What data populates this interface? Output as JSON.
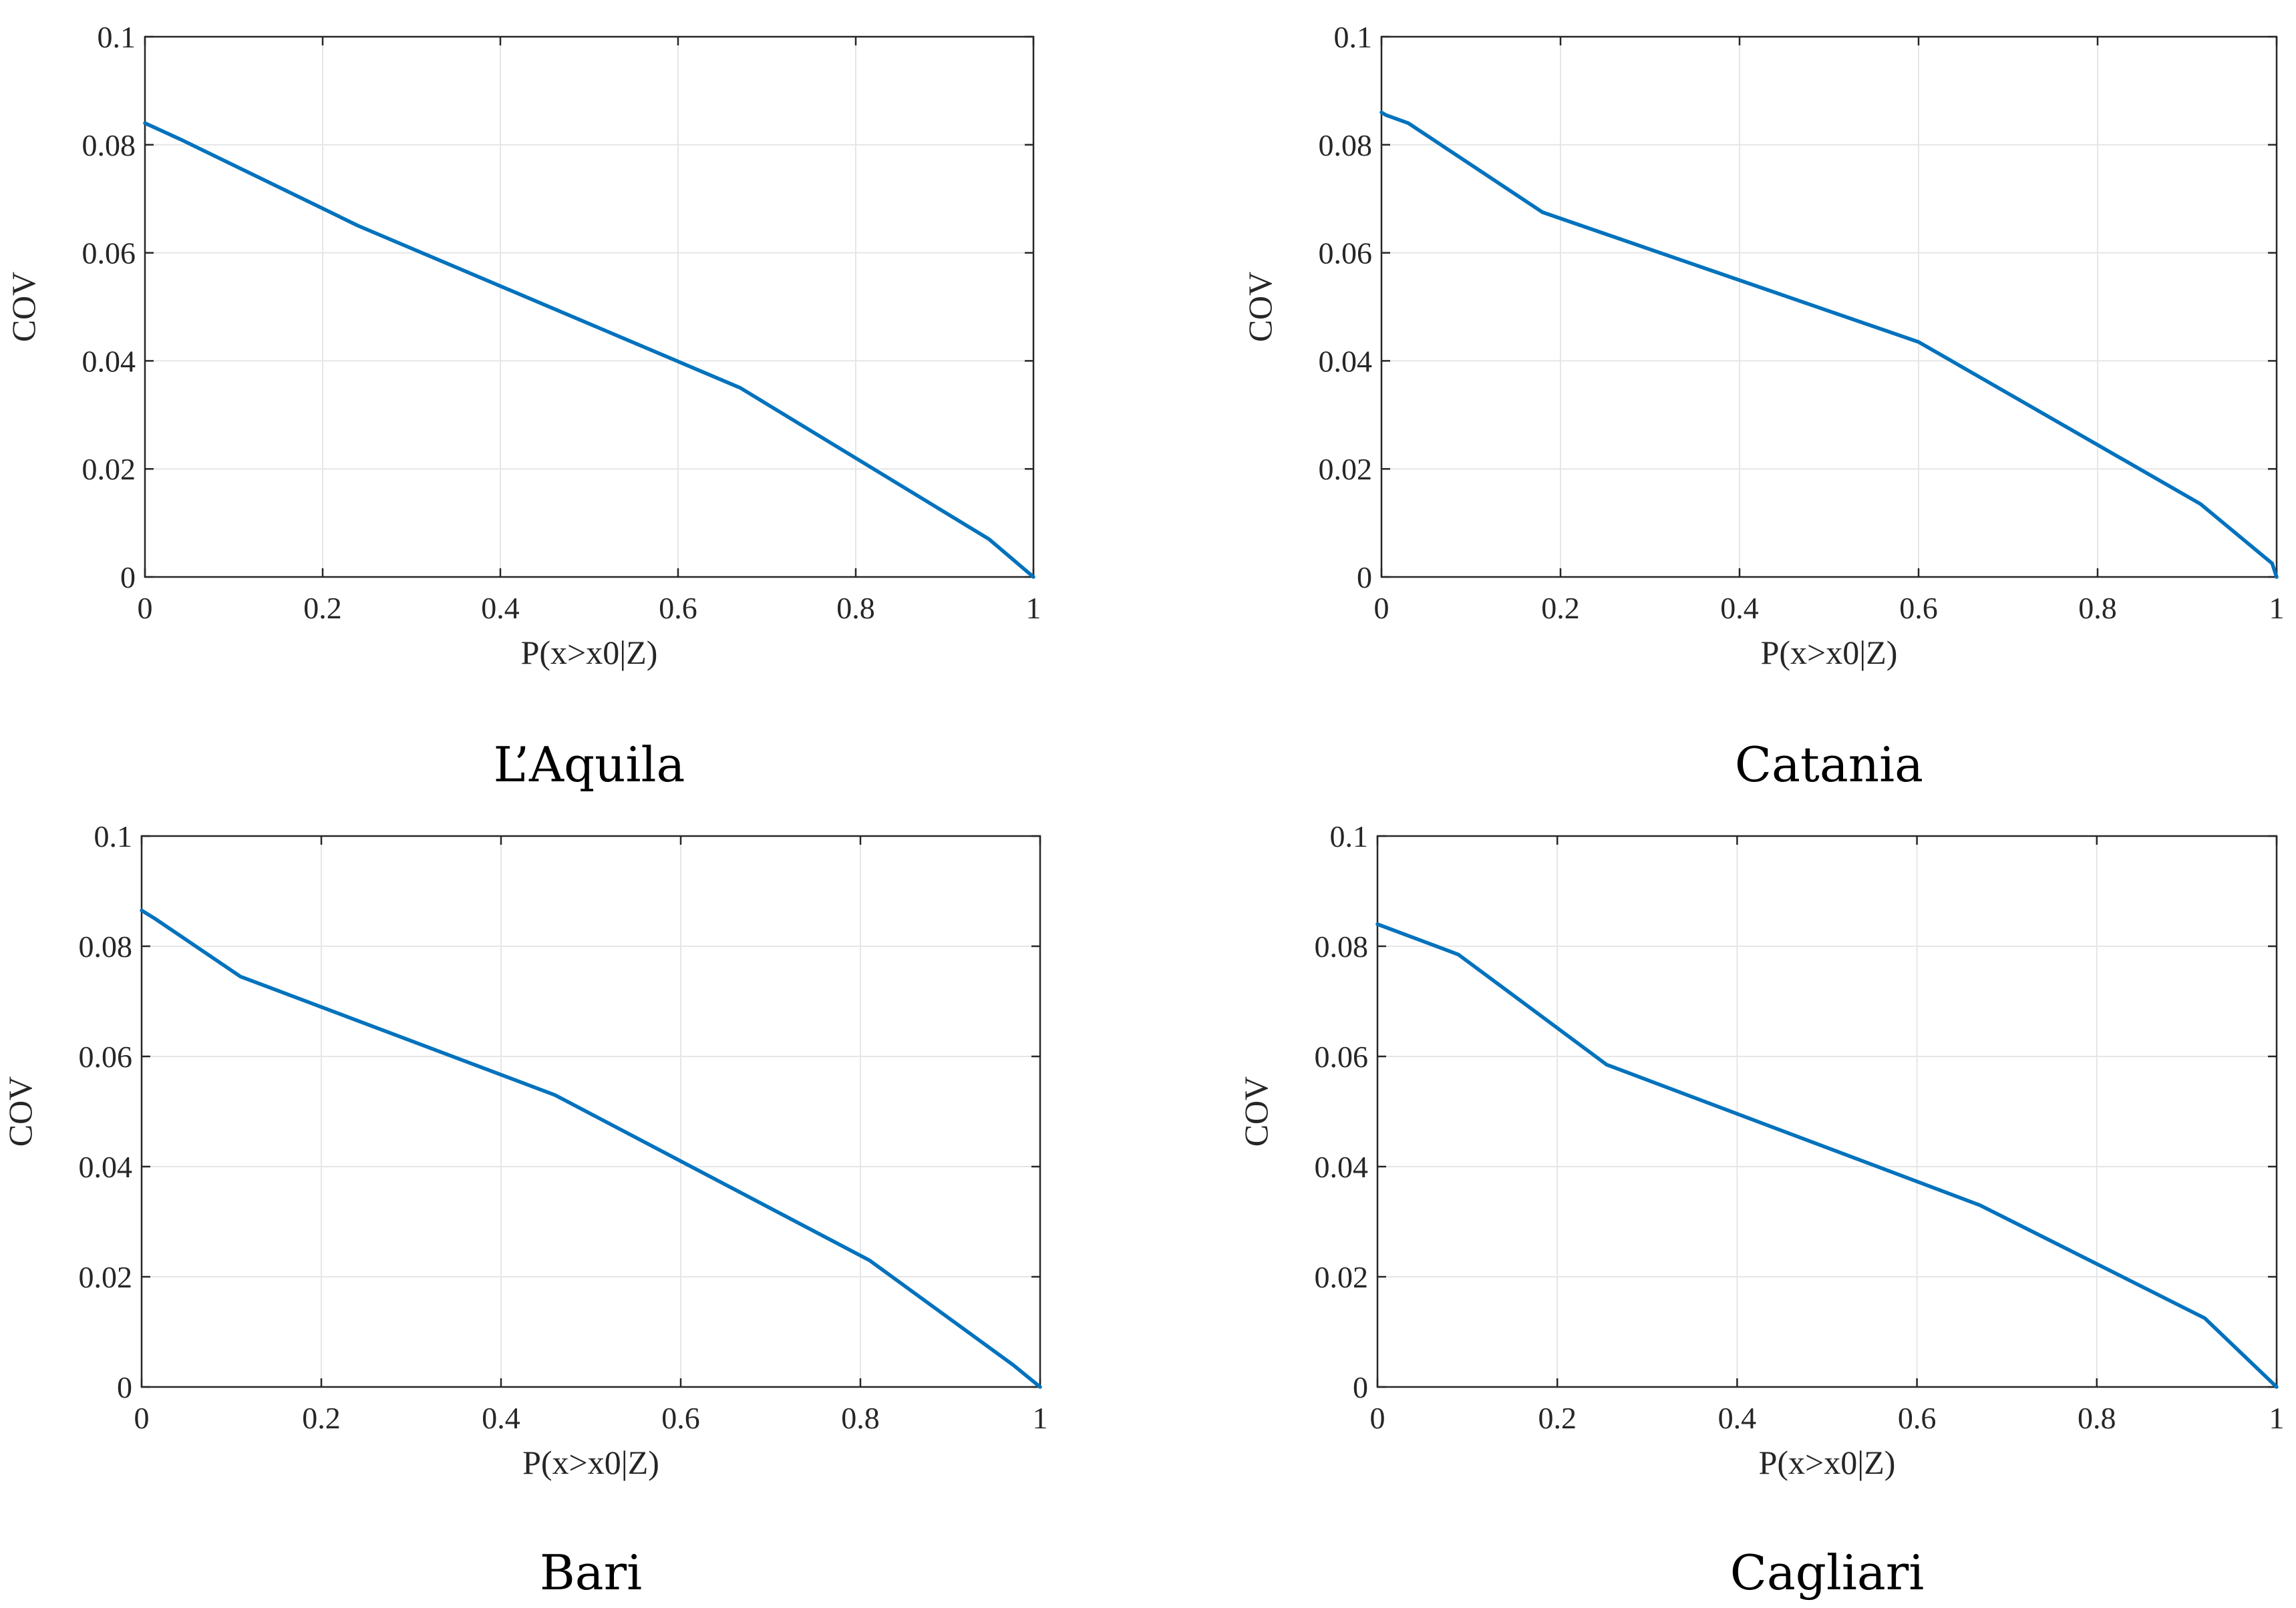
{
  "chart_data": [
    {
      "type": "line",
      "caption": "L’Aquila",
      "xlabel": "P(x>x0|Z)",
      "ylabel": "COV",
      "xlim": [
        0,
        1
      ],
      "ylim": [
        0,
        0.1
      ],
      "xticks": [
        "0",
        "0.2",
        "0.4",
        "0.6",
        "0.8",
        "1"
      ],
      "yticks": [
        "0",
        "0.02",
        "0.04",
        "0.06",
        "0.08",
        "0.1"
      ],
      "grid": true,
      "series": [
        {
          "name": "COV",
          "color": "#0072BD",
          "x": [
            0,
            0.04,
            0.24,
            0.67,
            0.95,
            1.0
          ],
          "y": [
            0.084,
            0.081,
            0.065,
            0.035,
            0.007,
            0.0
          ]
        }
      ]
    },
    {
      "type": "line",
      "caption": "Catania",
      "xlabel": "P(x>x0|Z)",
      "ylabel": "COV",
      "xlim": [
        0,
        1
      ],
      "ylim": [
        0,
        0.1
      ],
      "xticks": [
        "0",
        "0.2",
        "0.4",
        "0.6",
        "0.8",
        "1"
      ],
      "yticks": [
        "0",
        "0.02",
        "0.04",
        "0.06",
        "0.08",
        "0.1"
      ],
      "grid": true,
      "series": [
        {
          "name": "COV",
          "color": "#0072BD",
          "x": [
            0,
            0.005,
            0.03,
            0.18,
            0.6,
            0.915,
            0.995,
            1.0
          ],
          "y": [
            0.086,
            0.0855,
            0.084,
            0.0675,
            0.0435,
            0.0135,
            0.0025,
            0.0
          ]
        }
      ]
    },
    {
      "type": "line",
      "caption": "Bari",
      "xlabel": "P(x>x0|Z)",
      "ylabel": "COV",
      "xlim": [
        0,
        1
      ],
      "ylim": [
        0,
        0.1
      ],
      "xticks": [
        "0",
        "0.2",
        "0.4",
        "0.6",
        "0.8",
        "1"
      ],
      "yticks": [
        "0",
        "0.02",
        "0.04",
        "0.06",
        "0.08",
        "0.1"
      ],
      "grid": true,
      "series": [
        {
          "name": "COV",
          "color": "#0072BD",
          "x": [
            0,
            0.015,
            0.11,
            0.46,
            0.81,
            0.97,
            1.0
          ],
          "y": [
            0.0865,
            0.085,
            0.0745,
            0.053,
            0.023,
            0.004,
            0.0
          ]
        }
      ]
    },
    {
      "type": "line",
      "caption": "Cagliari",
      "xlabel": "P(x>x0|Z)",
      "ylabel": "COV",
      "xlim": [
        0,
        1
      ],
      "ylim": [
        0,
        0.1
      ],
      "xticks": [
        "0",
        "0.2",
        "0.4",
        "0.6",
        "0.8",
        "1"
      ],
      "yticks": [
        "0",
        "0.02",
        "0.04",
        "0.06",
        "0.08",
        "0.1"
      ],
      "grid": true,
      "series": [
        {
          "name": "COV",
          "color": "#0072BD",
          "x": [
            0,
            0.09,
            0.255,
            0.67,
            0.92,
            1.0
          ],
          "y": [
            0.084,
            0.0785,
            0.0585,
            0.033,
            0.0125,
            0.0
          ]
        }
      ]
    }
  ]
}
